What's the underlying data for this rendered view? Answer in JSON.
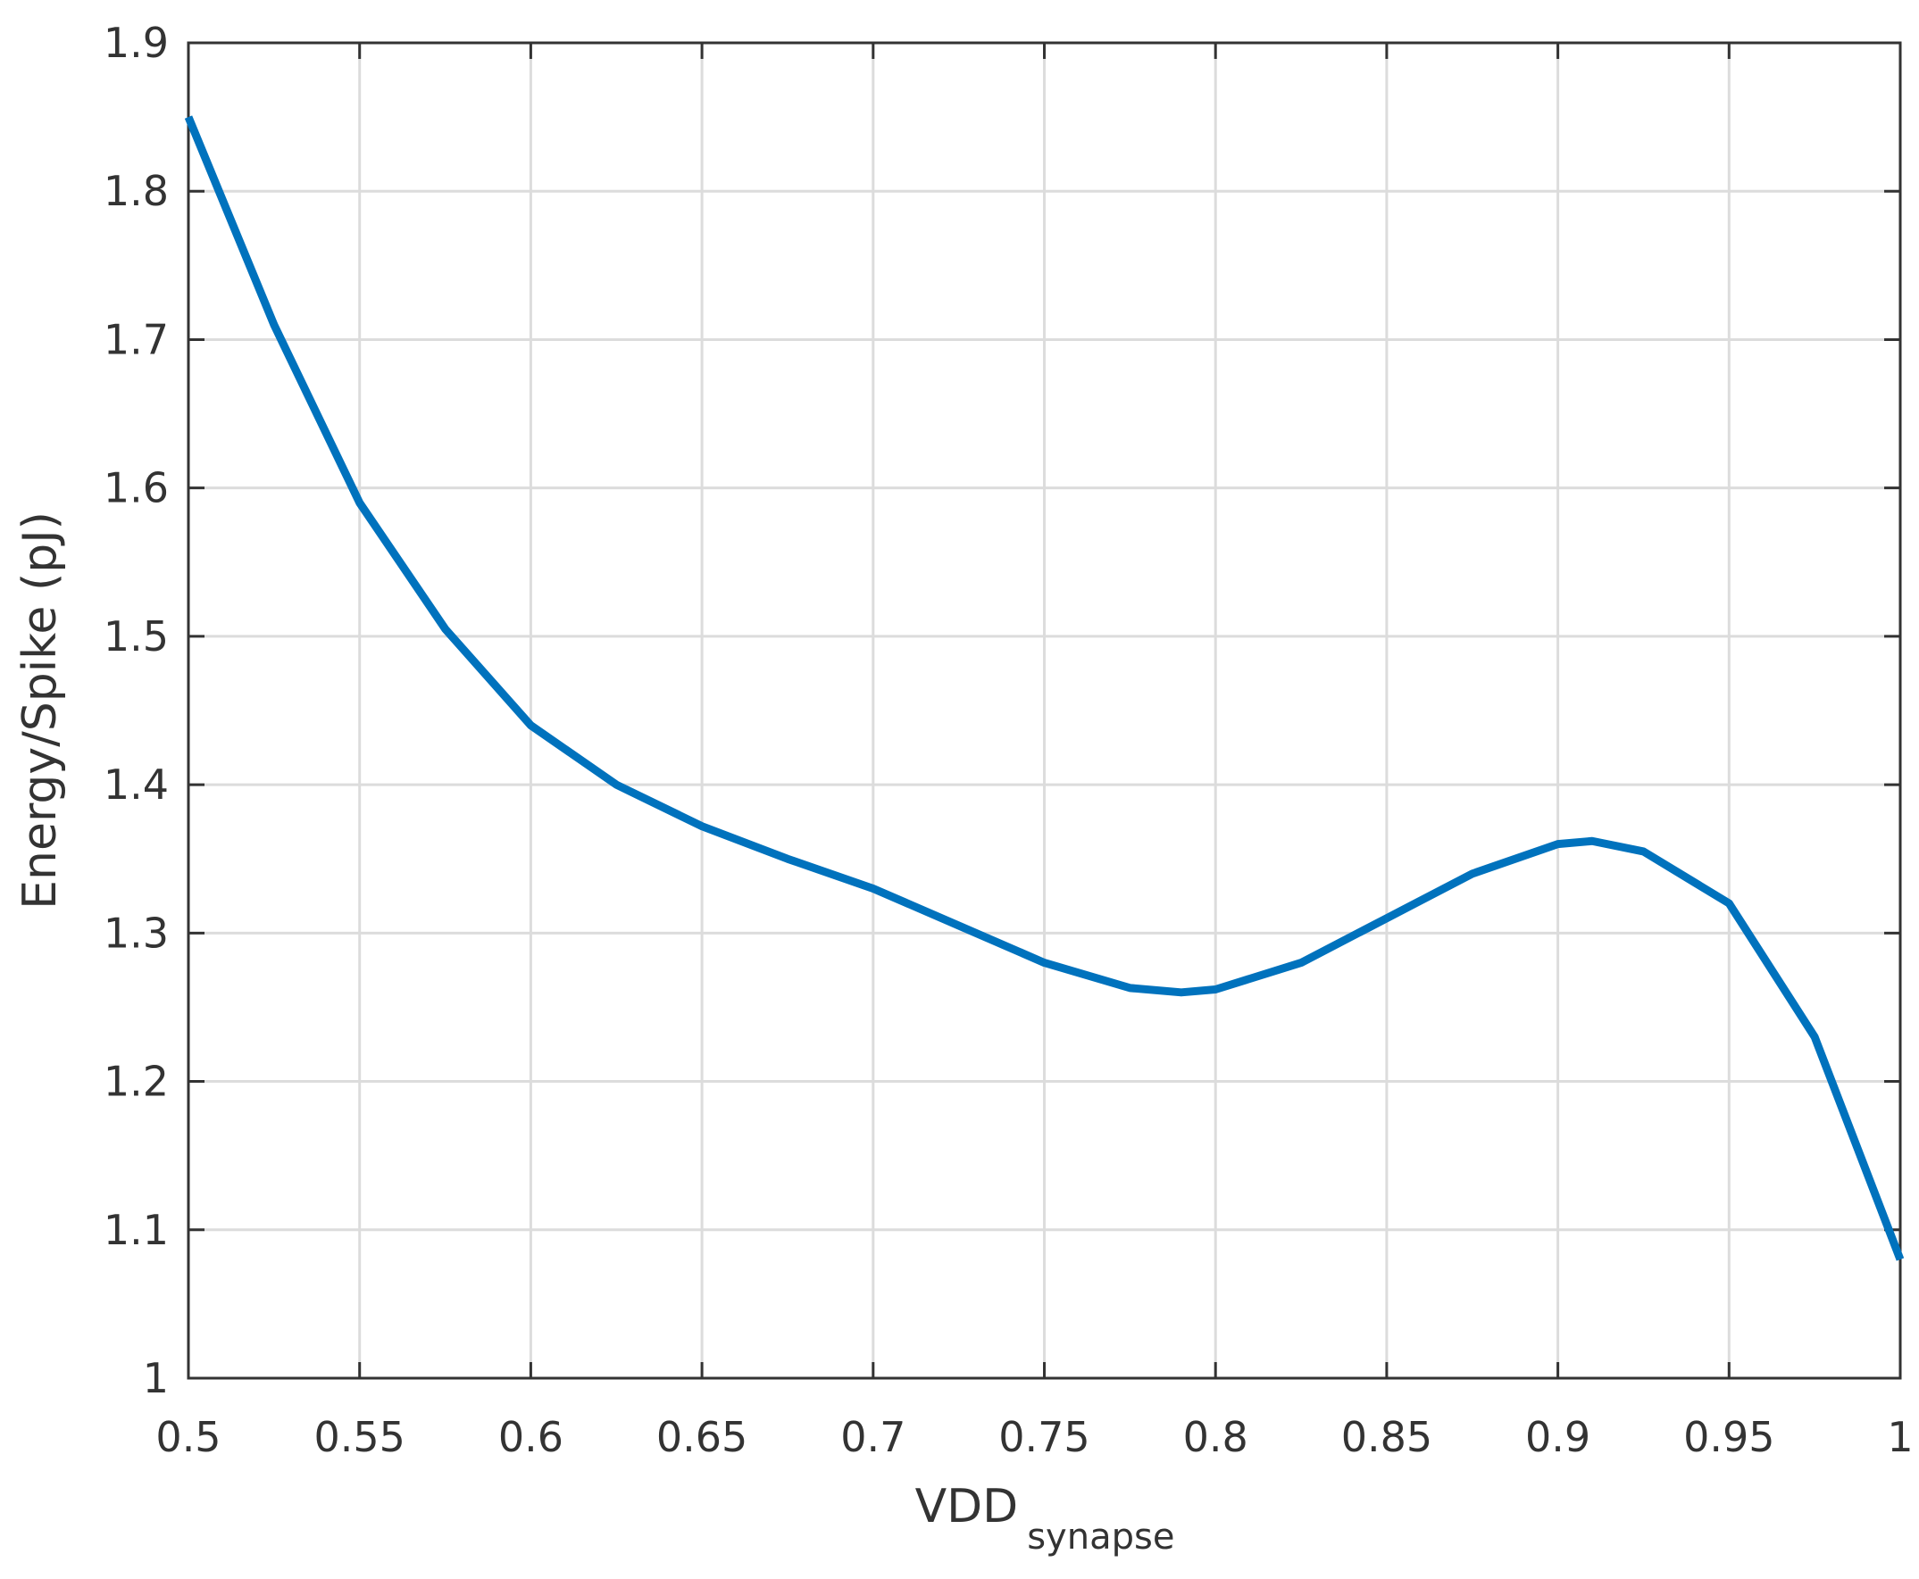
{
  "chart_data": {
    "type": "line",
    "xlabel": "VDD",
    "xlabel_subscript": "synapse",
    "ylabel": "Energy/Spike (pJ)",
    "x": [
      0.5,
      0.525,
      0.55,
      0.575,
      0.6,
      0.625,
      0.65,
      0.675,
      0.7,
      0.725,
      0.75,
      0.775,
      0.79,
      0.8,
      0.825,
      0.85,
      0.875,
      0.9,
      0.91,
      0.925,
      0.95,
      0.975,
      1.0
    ],
    "series": [
      {
        "color": "#0072bd",
        "values": [
          1.85,
          1.71,
          1.59,
          1.505,
          1.44,
          1.4,
          1.372,
          1.35,
          1.33,
          1.305,
          1.28,
          1.263,
          1.26,
          1.262,
          1.28,
          1.31,
          1.34,
          1.36,
          1.362,
          1.355,
          1.32,
          1.23,
          1.08
        ]
      }
    ],
    "xlim": [
      0.5,
      1
    ],
    "ylim": [
      1,
      1.9
    ],
    "xticks": [
      0.5,
      0.55,
      0.6,
      0.65,
      0.7,
      0.75,
      0.8,
      0.85,
      0.9,
      0.95,
      1
    ],
    "yticks": [
      1,
      1.1,
      1.2,
      1.3,
      1.4,
      1.5,
      1.6,
      1.7,
      1.8,
      1.9
    ],
    "grid": true
  }
}
